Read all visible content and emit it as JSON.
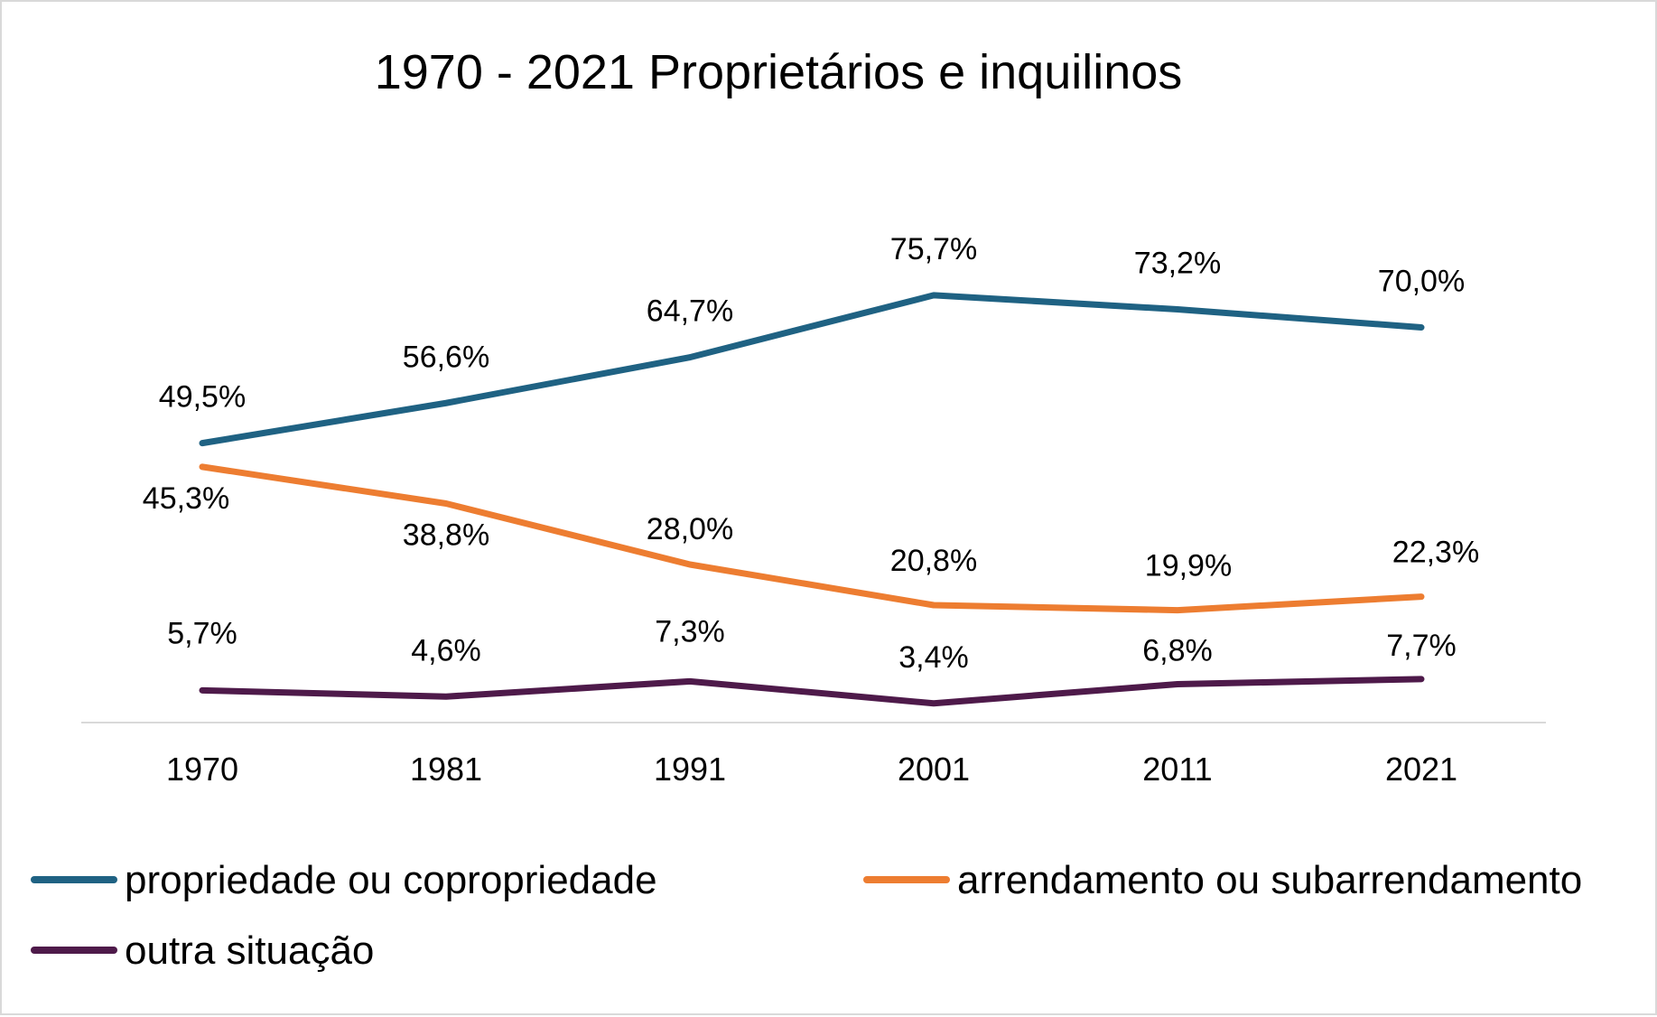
{
  "chart_data": {
    "type": "line",
    "title": "1970 - 2021 Proprietários e inquilinos",
    "xlabel": "",
    "ylabel": "",
    "ylim": [
      0,
      80
    ],
    "grid": false,
    "legend_position": "bottom",
    "categories": [
      "1970",
      "1981",
      "1991",
      "2001",
      "2011",
      "2021"
    ],
    "series": [
      {
        "name": "propriedade ou copropriedade",
        "color": "#1f6283",
        "values": [
          49.5,
          56.6,
          64.7,
          75.7,
          73.2,
          70.0
        ],
        "labels": [
          "49,5%",
          "56,6%",
          "64,7%",
          "75,7%",
          "73,2%",
          "70,0%"
        ]
      },
      {
        "name": "arrendamento ou subarrendamento",
        "color": "#ed7d31",
        "values": [
          45.3,
          38.8,
          28.0,
          20.8,
          19.9,
          22.3
        ],
        "labels": [
          "45,3%",
          "38,8%",
          "28,0%",
          "20,8%",
          "19,9%",
          "22,3%"
        ]
      },
      {
        "name": "outra situação",
        "color": "#4e1a4a",
        "values": [
          5.7,
          4.6,
          7.3,
          3.4,
          6.8,
          7.7
        ],
        "labels": [
          "5,7%",
          "4,6%",
          "7,3%",
          "3,4%",
          "6,8%",
          "7,7%"
        ]
      }
    ]
  }
}
